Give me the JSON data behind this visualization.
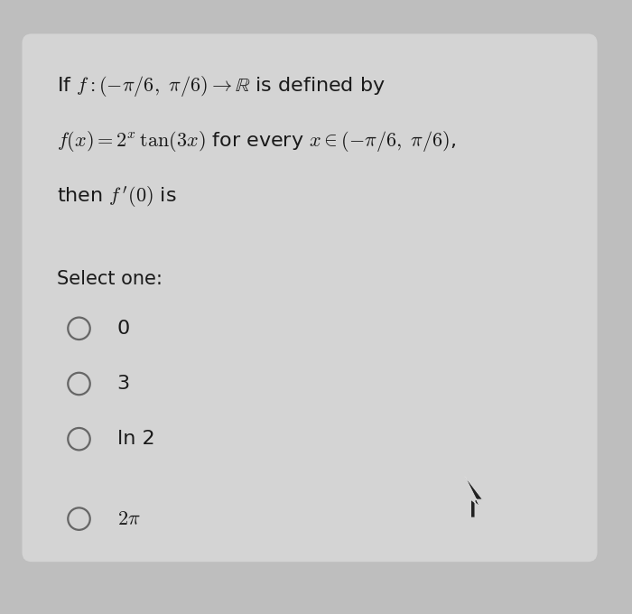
{
  "bg_outer": "#bebebe",
  "bg_inner": "#d4d4d4",
  "text_color": "#1a1a1a",
  "question_lines": [
    "If $f : (-\\pi/6,\\ \\pi/6) \\rightarrow \\mathbb{R}$ is defined by",
    "$f(x) = 2^x\\,\\tan(3x)$ for every $x \\in (-\\pi/6,\\ \\pi/6)$,",
    "then $f\\,'(0)$ is"
  ],
  "select_label": "Select one:",
  "options": [
    "0",
    "3",
    "ln 2",
    "$2\\pi$"
  ],
  "circle_color": "#666666",
  "question_fontsize": 16,
  "option_fontsize": 16,
  "select_fontsize": 15
}
